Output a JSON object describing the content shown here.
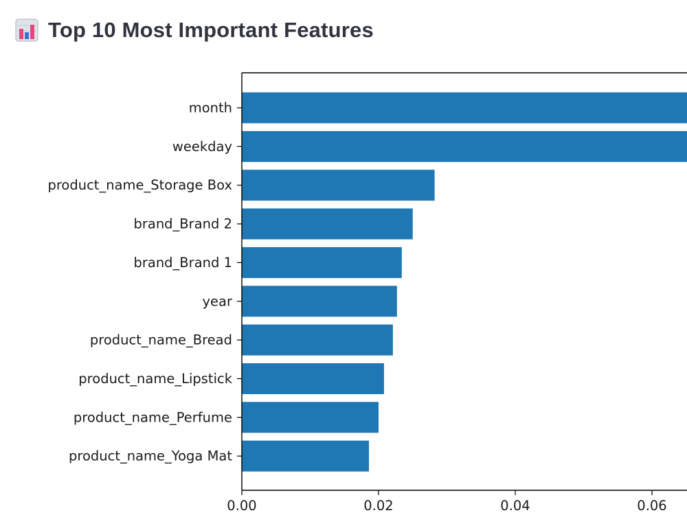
{
  "header": {
    "icon": "bar-chart-icon",
    "title": "Top 10 Most Important Features"
  },
  "chart_data": {
    "type": "bar",
    "orientation": "horizontal",
    "title": "",
    "xlabel": "",
    "ylabel": "",
    "bar_color": "#1f77b4",
    "xlim": [
      0,
      0.0655
    ],
    "x_ticks": [
      0.0,
      0.02,
      0.04,
      0.06
    ],
    "x_tick_labels": [
      "0.00",
      "0.02",
      "0.04",
      "0.06"
    ],
    "categories": [
      "month",
      "weekday",
      "product_name_Storage Box",
      "brand_Brand 2",
      "brand_Brand 1",
      "year",
      "product_name_Bread",
      "product_name_Lipstick",
      "product_name_Perfume",
      "product_name_Yoga Mat"
    ],
    "values": [
      0.066,
      0.066,
      0.0282,
      0.025,
      0.0234,
      0.0227,
      0.0221,
      0.0208,
      0.02,
      0.0186
    ]
  }
}
